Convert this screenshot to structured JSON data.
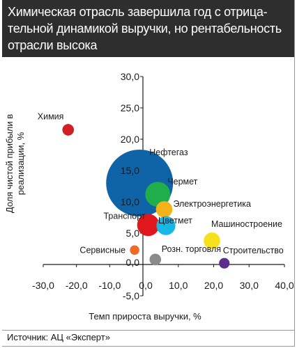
{
  "title": "Химическая отрасль завершила год с отрица-\nтельной динамикой выручки, но рентабельность\nотрасли высока",
  "source": "Источник: АЦ «Эксперт»",
  "chart_data": {
    "type": "scatter",
    "title": "Химическая отрасль завершила год с отрицательной динамикой выручки, но рентабельность отрасли высока",
    "xlabel": "Темп прироста выручки, %",
    "ylabel_lines": [
      "Доля чистой прибыли в",
      "реализации, %"
    ],
    "xlim": [
      -30,
      40
    ],
    "ylim": [
      -5,
      30
    ],
    "x_ticks": [
      -30,
      -20,
      -10,
      0,
      10,
      20,
      30,
      40
    ],
    "x_tick_labels": [
      "-30,0",
      "-20,0",
      "-10,0",
      "0,0",
      "10,0",
      "20,0",
      "30,0",
      "40,0"
    ],
    "y_ticks": [
      -5,
      0,
      5,
      10,
      15,
      20,
      25,
      30
    ],
    "y_tick_labels": [
      "-5,0",
      "0,0",
      "5,0",
      "10,0",
      "15,0",
      "20,0",
      "25,0",
      "30,0"
    ],
    "grid": false,
    "series": [
      {
        "label": "Химия",
        "x": -22.5,
        "y": 21.5,
        "size": 3,
        "color": "#d21f26"
      },
      {
        "label": "Нефтегаз",
        "x": -1.0,
        "y": 13.0,
        "size": 100,
        "color": "#0f64a8"
      },
      {
        "label": "Чермет",
        "x": 4.2,
        "y": 11.2,
        "size": 14,
        "color": "#1fae4a"
      },
      {
        "label": "Электроэнергетика",
        "x": 6.0,
        "y": 8.8,
        "size": 6,
        "color": "#f4b21a"
      },
      {
        "label": "Транспорт",
        "x": 1.5,
        "y": 6.3,
        "size": 11,
        "color": "#e0181e"
      },
      {
        "label": "Цветмет",
        "x": 6.5,
        "y": 6.2,
        "size": 8,
        "color": "#17b7e6"
      },
      {
        "label": "Машиностроение",
        "x": 19.5,
        "y": 3.8,
        "size": 6,
        "color": "#f7e01c"
      },
      {
        "label": "Сервисные",
        "x": -2.5,
        "y": 2.3,
        "size": 2,
        "color": "#f06a24"
      },
      {
        "label": "Розн. торговля",
        "x": 3.5,
        "y": 0.8,
        "size": 3,
        "color": "#8a8a8a"
      },
      {
        "label": "Строительство",
        "x": 23.0,
        "y": 0.2,
        "size": 2.5,
        "color": "#5b2d8c"
      }
    ]
  }
}
